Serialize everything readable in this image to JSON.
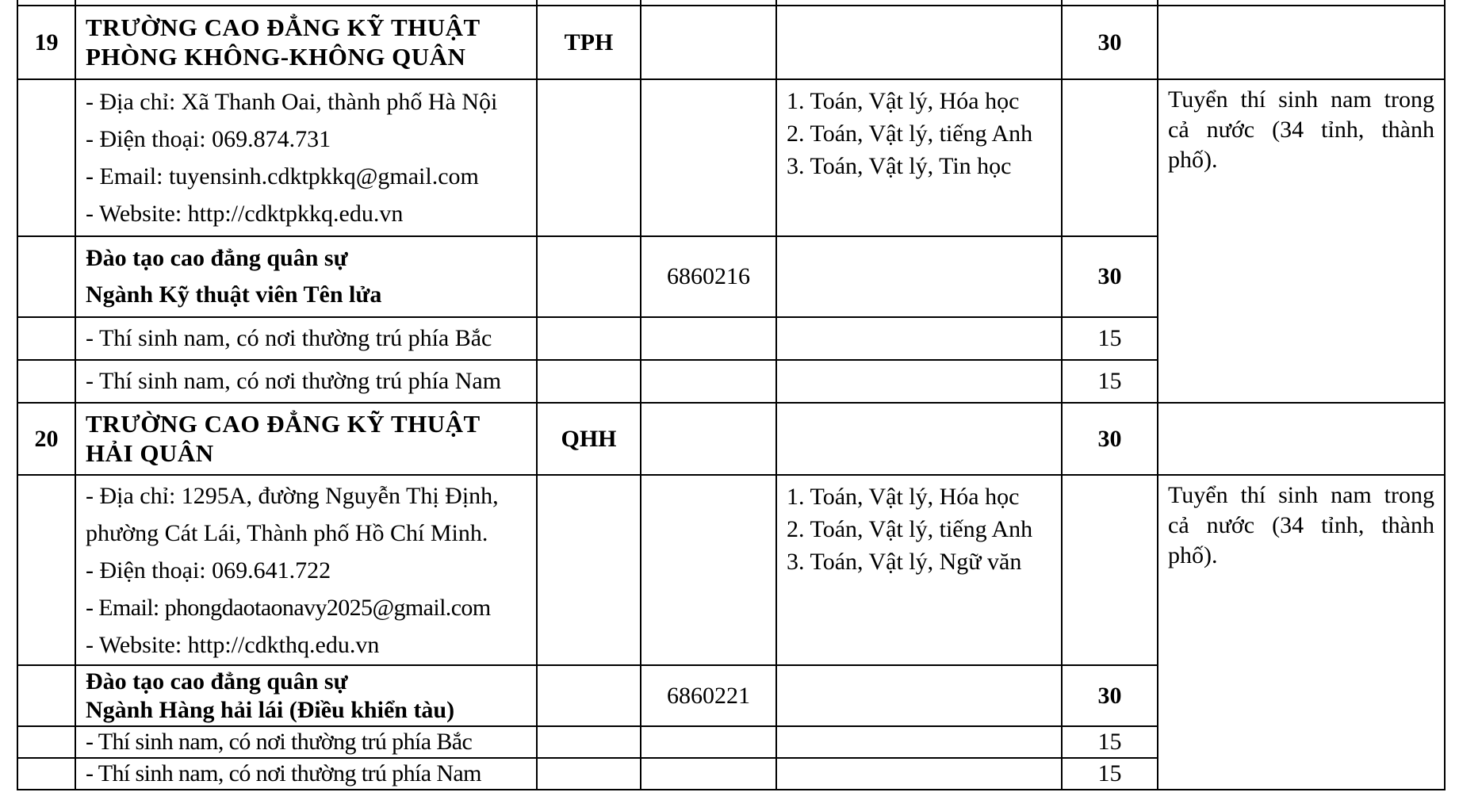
{
  "schools": [
    {
      "no": "19",
      "name_lines": [
        "TRƯỜNG CAO ĐẲNG KỸ THUẬT",
        "PHÒNG KHÔNG-KHÔNG QUÂN"
      ],
      "code": "TPH",
      "quota": "30",
      "contact": [
        "- Địa chỉ: Xã Thanh Oai, thành phố Hà Nội",
        "- Điện thoại: 069.874.731",
        "- Email: tuyensinh.cdktpkkq@gmail.com",
        "- Website: http://cdktpkkq.edu.vn"
      ],
      "combinations": [
        "1. Toán, Vật lý, Hóa học",
        "2. Toán, Vật lý, tiếng Anh",
        "3. Toán, Vật lý, Tin học"
      ],
      "remark": "Tuyển thí sinh nam trong cả nước (34 tỉnh, thành phố).",
      "program_lines": [
        "Đào tạo cao đẳng quân sự",
        "Ngành Kỹ thuật viên Tên lửa"
      ],
      "program_code": "6860216",
      "program_quota": "30",
      "sub": [
        {
          "label": "- Thí sinh nam, có nơi thường trú phía Bắc",
          "quota": "15"
        },
        {
          "label": "- Thí sinh nam, có nơi thường trú phía Nam",
          "quota": "15"
        }
      ]
    },
    {
      "no": "20",
      "name_lines": [
        "TRƯỜNG CAO ĐẲNG KỸ THUẬT",
        "HẢI QUÂN"
      ],
      "code": "QHH",
      "quota": "30",
      "contact": [
        "- Địa chỉ: 1295A, đường Nguyễn Thị Định,",
        "phường Cát Lái, Thành phố Hồ Chí Minh.",
        "- Điện thoại: 069.641.722",
        "- Email: phongdaotaonavy2025@gmail.com",
        "- Website: http://cdkthq.edu.vn"
      ],
      "combinations": [
        "1. Toán, Vật lý, Hóa học",
        "2. Toán, Vật lý, tiếng Anh",
        "3. Toán, Vật lý, Ngữ văn"
      ],
      "remark": "Tuyển thí sinh nam trong cả nước (34 tỉnh, thành phố).",
      "program_lines": [
        "Đào tạo cao đẳng quân sự",
        "Ngành Hàng hải lái (Điều khiển tàu)"
      ],
      "program_code": "6860221",
      "program_quota": "30",
      "sub": [
        {
          "label": "- Thí sinh nam, có nơi thường trú phía Bắc",
          "quota": "15"
        },
        {
          "label": "- Thí sinh nam, có nơi thường trú phía Nam",
          "quota": "15"
        }
      ]
    }
  ]
}
